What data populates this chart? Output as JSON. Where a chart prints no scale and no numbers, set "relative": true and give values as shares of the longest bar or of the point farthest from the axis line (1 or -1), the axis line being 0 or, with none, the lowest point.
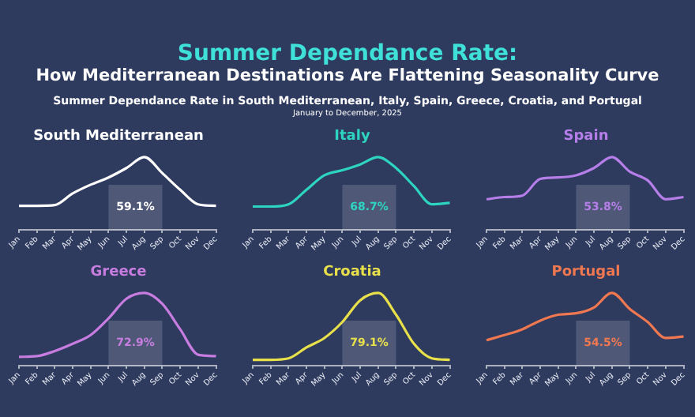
{
  "chart_data": [
    {
      "type": "other",
      "title": "Summer Dependance Rate:",
      "subtitle": "How Mediterranean Destinations Are Flattening Seasonality Curve",
      "annotations": [
        "Summer Dependance Rate in South Mediterranean, Italy, Spain, Greece, Croatia, and Portugal",
        "January to December, 2025"
      ]
    },
    {
      "type": "line",
      "title": "South Mediterranean",
      "relative": true,
      "categories": [
        "Jan",
        "Feb",
        "Mar",
        "Apr",
        "May",
        "Jun",
        "Jul",
        "Aug",
        "Sep",
        "Oct",
        "Nov",
        "Dec"
      ],
      "series": [
        {
          "color": "#ffffff",
          "values": [
            0.33,
            0.33,
            0.34,
            0.5,
            0.62,
            0.72,
            0.85,
            1.0,
            0.78,
            0.55,
            0.35,
            0.33
          ]
        }
      ],
      "bands": [
        {
          "axis": "x",
          "from": "Jun",
          "to": "Sep",
          "label": "59.1%",
          "color": "#ffffff"
        }
      ]
    },
    {
      "type": "line",
      "title": "Italy",
      "relative": true,
      "categories": [
        "Jan",
        "Feb",
        "Mar",
        "Apr",
        "May",
        "Jun",
        "Jul",
        "Aug",
        "Sep",
        "Oct",
        "Nov",
        "Dec"
      ],
      "series": [
        {
          "color": "#2dd4bf",
          "values": [
            0.32,
            0.32,
            0.35,
            0.55,
            0.75,
            0.82,
            0.9,
            1.0,
            0.85,
            0.6,
            0.35,
            0.37
          ]
        }
      ],
      "bands": [
        {
          "axis": "x",
          "from": "Jun",
          "to": "Sep",
          "label": "68.7%",
          "color": "#ffffff"
        }
      ]
    },
    {
      "type": "line",
      "title": "Spain",
      "relative": true,
      "categories": [
        "Jan",
        "Feb",
        "Mar",
        "Apr",
        "May",
        "Jun",
        "Jul",
        "Aug",
        "Sep",
        "Oct",
        "Nov",
        "Dec"
      ],
      "series": [
        {
          "color": "#b57ee8",
          "values": [
            0.42,
            0.45,
            0.47,
            0.7,
            0.72,
            0.75,
            0.85,
            1.0,
            0.8,
            0.68,
            0.42,
            0.45
          ]
        }
      ],
      "bands": [
        {
          "axis": "x",
          "from": "Jun",
          "to": "Sep",
          "label": "53.8%",
          "color": "#ffffff"
        }
      ]
    },
    {
      "type": "line",
      "title": "Greece",
      "relative": true,
      "categories": [
        "Jan",
        "Feb",
        "Mar",
        "Apr",
        "May",
        "Jun",
        "Jul",
        "Aug",
        "Sep",
        "Oct",
        "Nov",
        "Dec"
      ],
      "series": [
        {
          "color": "#c77ddf",
          "values": [
            0.12,
            0.13,
            0.2,
            0.3,
            0.42,
            0.65,
            0.92,
            1.0,
            0.85,
            0.5,
            0.15,
            0.13
          ]
        }
      ],
      "bands": [
        {
          "axis": "x",
          "from": "Jun",
          "to": "Sep",
          "label": "72.9%",
          "color": "#ffffff"
        }
      ]
    },
    {
      "type": "line",
      "title": "Croatia",
      "relative": true,
      "categories": [
        "Jan",
        "Feb",
        "Mar",
        "Apr",
        "May",
        "Jun",
        "Jul",
        "Aug",
        "Sep",
        "Oct",
        "Nov",
        "Dec"
      ],
      "series": [
        {
          "color": "#e8e04a",
          "values": [
            0.08,
            0.08,
            0.1,
            0.25,
            0.38,
            0.6,
            0.9,
            1.0,
            0.7,
            0.3,
            0.1,
            0.08
          ]
        }
      ],
      "bands": [
        {
          "axis": "x",
          "from": "Jun",
          "to": "Sep",
          "label": "79.1%",
          "color": "#ffffff"
        }
      ]
    },
    {
      "type": "line",
      "title": "Portugal",
      "relative": true,
      "categories": [
        "Jan",
        "Feb",
        "Mar",
        "Apr",
        "May",
        "Jun",
        "Jul",
        "Aug",
        "Sep",
        "Oct",
        "Nov",
        "Dec"
      ],
      "series": [
        {
          "color": "#f07850",
          "values": [
            0.35,
            0.42,
            0.5,
            0.62,
            0.7,
            0.72,
            0.8,
            1.0,
            0.78,
            0.6,
            0.38,
            0.4
          ]
        }
      ],
      "bands": [
        {
          "axis": "x",
          "from": "Jun",
          "to": "Sep",
          "label": "54.5%",
          "color": "#ffffff"
        }
      ]
    }
  ]
}
